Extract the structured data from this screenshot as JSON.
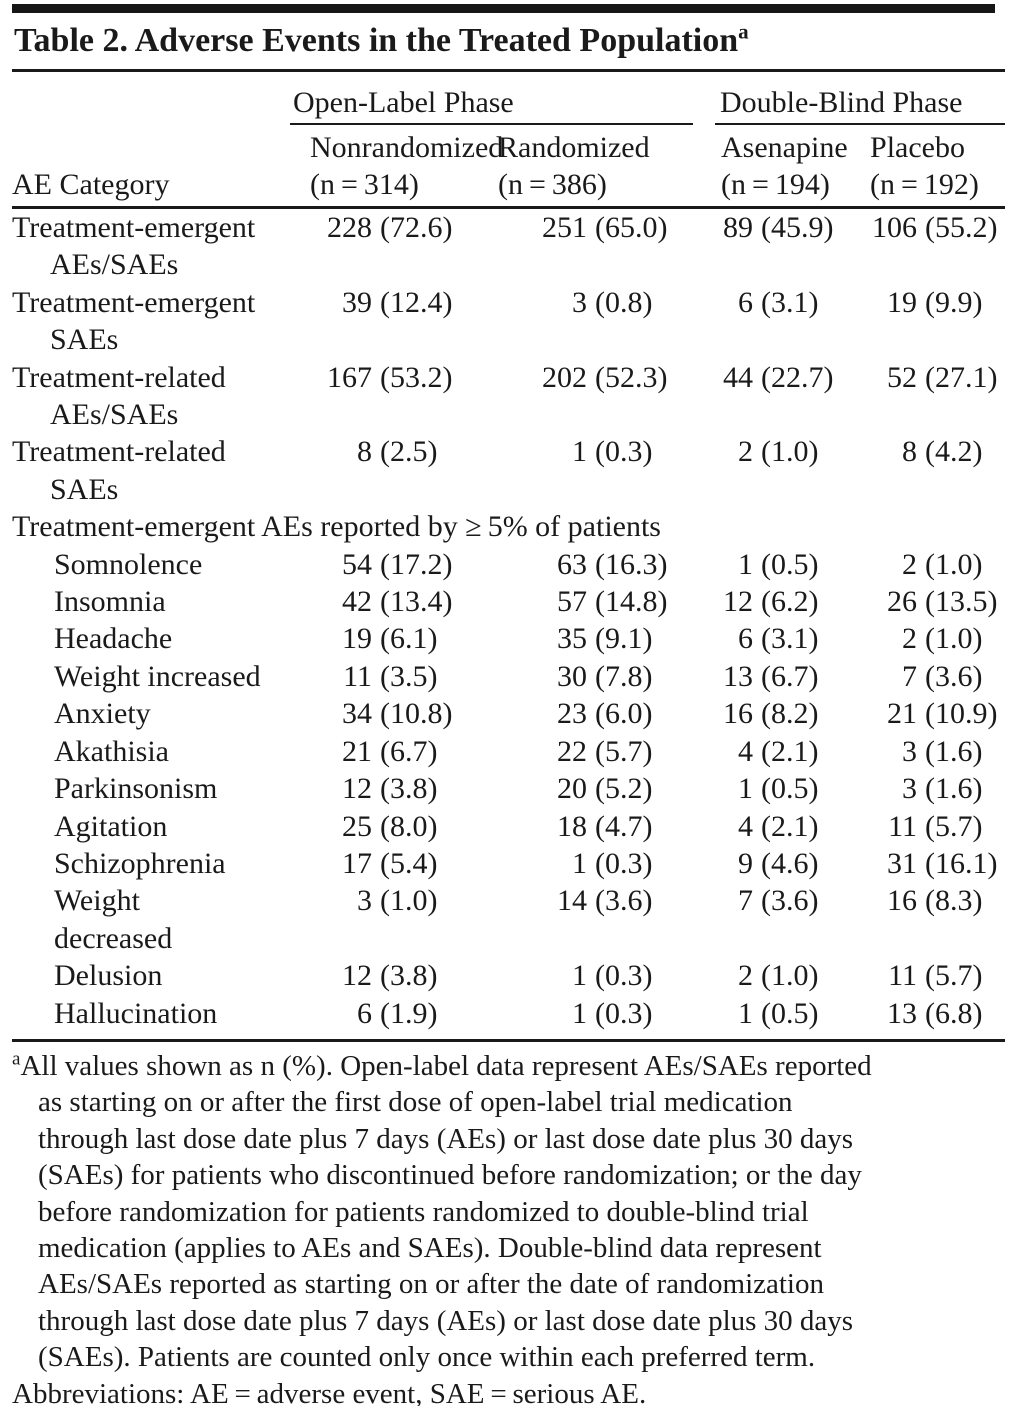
{
  "title": {
    "text": "Table 2. Adverse Events in the Treated Population",
    "marker": "a"
  },
  "header": {
    "category_label": "AE Category",
    "groups": [
      {
        "label": "Open-Label Phase"
      },
      {
        "label": "Double-Blind Phase"
      }
    ],
    "columns": [
      {
        "label": "Nonrandomized",
        "n": "(n = 314)"
      },
      {
        "label": "Randomized",
        "n": "(n = 386)"
      },
      {
        "label": "Asenapine",
        "n": "(n = 194)"
      },
      {
        "label": "Placebo",
        "n": "(n = 192)"
      }
    ]
  },
  "rows": [
    {
      "label": "Treatment-emergent",
      "label2": "AEs/SAEs",
      "indent": false,
      "values": [
        [
          "228",
          "(72.6)"
        ],
        [
          "251",
          "(65.0)"
        ],
        [
          "89",
          "(45.9)"
        ],
        [
          "106",
          "(55.2)"
        ]
      ]
    },
    {
      "label": "Treatment-emergent",
      "label2": "SAEs",
      "indent": false,
      "values": [
        [
          "39",
          "(12.4)"
        ],
        [
          "3",
          "(0.8)"
        ],
        [
          "6",
          "(3.1)"
        ],
        [
          "19",
          "(9.9)"
        ]
      ]
    },
    {
      "label": "Treatment-related",
      "label2": "AEs/SAEs",
      "indent": false,
      "values": [
        [
          "167",
          "(53.2)"
        ],
        [
          "202",
          "(52.3)"
        ],
        [
          "44",
          "(22.7)"
        ],
        [
          "52",
          "(27.1)"
        ]
      ]
    },
    {
      "label": "Treatment-related",
      "label2": "SAEs",
      "indent": false,
      "values": [
        [
          "8",
          "(2.5)"
        ],
        [
          "1",
          "(0.3)"
        ],
        [
          "2",
          "(1.0)"
        ],
        [
          "8",
          "(4.2)"
        ]
      ]
    },
    {
      "type": "section",
      "label": "Treatment-emergent AEs reported by ≥ 5% of patients"
    },
    {
      "label": "Somnolence",
      "indent": true,
      "values": [
        [
          "54",
          "(17.2)"
        ],
        [
          "63",
          "(16.3)"
        ],
        [
          "1",
          "(0.5)"
        ],
        [
          "2",
          "(1.0)"
        ]
      ]
    },
    {
      "label": "Insomnia",
      "indent": true,
      "values": [
        [
          "42",
          "(13.4)"
        ],
        [
          "57",
          "(14.8)"
        ],
        [
          "12",
          "(6.2)"
        ],
        [
          "26",
          "(13.5)"
        ]
      ]
    },
    {
      "label": "Headache",
      "indent": true,
      "values": [
        [
          "19",
          "(6.1)"
        ],
        [
          "35",
          "(9.1)"
        ],
        [
          "6",
          "(3.1)"
        ],
        [
          "2",
          "(1.0)"
        ]
      ]
    },
    {
      "label": "Weight increased",
      "indent": true,
      "values": [
        [
          "11",
          "(3.5)"
        ],
        [
          "30",
          "(7.8)"
        ],
        [
          "13",
          "(6.7)"
        ],
        [
          "7",
          "(3.6)"
        ]
      ]
    },
    {
      "label": "Anxiety",
      "indent": true,
      "values": [
        [
          "34",
          "(10.8)"
        ],
        [
          "23",
          "(6.0)"
        ],
        [
          "16",
          "(8.2)"
        ],
        [
          "21",
          "(10.9)"
        ]
      ]
    },
    {
      "label": "Akathisia",
      "indent": true,
      "values": [
        [
          "21",
          "(6.7)"
        ],
        [
          "22",
          "(5.7)"
        ],
        [
          "4",
          "(2.1)"
        ],
        [
          "3",
          "(1.6)"
        ]
      ]
    },
    {
      "label": "Parkinsonism",
      "indent": true,
      "values": [
        [
          "12",
          "(3.8)"
        ],
        [
          "20",
          "(5.2)"
        ],
        [
          "1",
          "(0.5)"
        ],
        [
          "3",
          "(1.6)"
        ]
      ]
    },
    {
      "label": "Agitation",
      "indent": true,
      "values": [
        [
          "25",
          "(8.0)"
        ],
        [
          "18",
          "(4.7)"
        ],
        [
          "4",
          "(2.1)"
        ],
        [
          "11",
          "(5.7)"
        ]
      ]
    },
    {
      "label": "Schizophrenia",
      "indent": true,
      "values": [
        [
          "17",
          "(5.4)"
        ],
        [
          "1",
          "(0.3)"
        ],
        [
          "9",
          "(4.6)"
        ],
        [
          "31",
          "(16.1)"
        ]
      ]
    },
    {
      "label": "Weight",
      "label2": "decreased",
      "indent": true,
      "values": [
        [
          "3",
          "(1.0)"
        ],
        [
          "14",
          "(3.6)"
        ],
        [
          "7",
          "(3.6)"
        ],
        [
          "16",
          "(8.3)"
        ]
      ]
    },
    {
      "label": "Delusion",
      "indent": true,
      "values": [
        [
          "12",
          "(3.8)"
        ],
        [
          "1",
          "(0.3)"
        ],
        [
          "2",
          "(1.0)"
        ],
        [
          "11",
          "(5.7)"
        ]
      ]
    },
    {
      "label": "Hallucination",
      "indent": true,
      "values": [
        [
          "6",
          "(1.9)"
        ],
        [
          "1",
          "(0.3)"
        ],
        [
          "1",
          "(0.5)"
        ],
        [
          "13",
          "(6.8)"
        ]
      ]
    }
  ],
  "footnote": {
    "marker": "a",
    "lines": [
      "All values shown as n (%). Open-label data represent AEs/SAEs reported",
      "as starting on or after the first dose of open-label trial medication",
      "through last dose date plus 7 days (AEs) or last dose date plus 30 days",
      "(SAEs) for patients who discontinued before randomization; or the day",
      "before randomization for patients randomized to double-blind trial",
      "medication (applies to AEs and SAEs). Double-blind data represent",
      "AEs/SAEs reported as starting on or after the date of randomization",
      "through last dose date plus 7 days (AEs) or last dose date plus 30 days",
      "(SAEs). Patients are counted only once within each preferred term."
    ],
    "abbreviations": "Abbreviations: AE = adverse event, SAE = serious AE."
  }
}
